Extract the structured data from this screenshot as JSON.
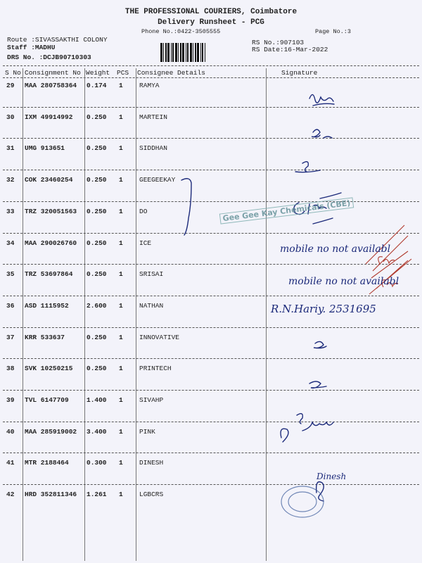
{
  "header": {
    "company": "THE PROFESSIONAL COURIERS, Coimbatore",
    "subtitle": "Delivery Runsheet - PCG",
    "phone": "Phone No.:0422-3505555",
    "page_no": "Page No.:3",
    "route": "Route :SIVASSAKTHI COLONY",
    "staff": "Staff :MADHU",
    "drs_no": "DRS No. :DCJB90710303",
    "rs_no": "RS No.:907103",
    "rs_date": "RS Date:16-Mar-2022"
  },
  "columns": [
    "S No",
    "Consignment No",
    "Weight",
    "PCS",
    "Consignee Details",
    "Signature"
  ],
  "rows": [
    {
      "sno": "29",
      "consignment": "MAA 280758364",
      "weight": "0.174",
      "pcs": "1",
      "consignee": "RAMYA"
    },
    {
      "sno": "30",
      "consignment": "IXM 49914992",
      "weight": "0.250",
      "pcs": "1",
      "consignee": "MARTEIN"
    },
    {
      "sno": "31",
      "consignment": "UMG 913651",
      "weight": "0.250",
      "pcs": "1",
      "consignee": "SIDDHAN"
    },
    {
      "sno": "32",
      "consignment": "COK 23460254",
      "weight": "0.250",
      "pcs": "1",
      "consignee": "GEEGEEKAY"
    },
    {
      "sno": "33",
      "consignment": "TRZ 320051563",
      "weight": "0.250",
      "pcs": "1",
      "consignee": "DO"
    },
    {
      "sno": "34",
      "consignment": "MAA 290026760",
      "weight": "0.250",
      "pcs": "1",
      "consignee": "ICE"
    },
    {
      "sno": "35",
      "consignment": "TRZ 53697864",
      "weight": "0.250",
      "pcs": "1",
      "consignee": "SRISAI"
    },
    {
      "sno": "36",
      "consignment": "ASD 1115952",
      "weight": "2.600",
      "pcs": "1",
      "consignee": "NATHAN"
    },
    {
      "sno": "37",
      "consignment": "KRR 533637",
      "weight": "0.250",
      "pcs": "1",
      "consignee": "INNOVATIVE"
    },
    {
      "sno": "38",
      "consignment": "SVK 10250215",
      "weight": "0.250",
      "pcs": "1",
      "consignee": "PRINTECH"
    },
    {
      "sno": "39",
      "consignment": "TVL 6147709",
      "weight": "1.400",
      "pcs": "1",
      "consignee": "SIVAHP"
    },
    {
      "sno": "40",
      "consignment": "MAA 285919002",
      "weight": "3.400",
      "pcs": "1",
      "consignee": "PINK"
    },
    {
      "sno": "41",
      "consignment": "MTR 2188464",
      "weight": "0.300",
      "pcs": "1",
      "consignee": "DINESH"
    },
    {
      "sno": "42",
      "consignment": "HRD 352811346",
      "weight": "1.261",
      "pcs": "1",
      "consignee": "LGBCRS"
    }
  ],
  "handwritten": {
    "note_34": "mobile no not availabl",
    "note_35": "mobile no not availabl",
    "note_36": "R.N.Hariy. 2531695",
    "sig_41": "Dinesh"
  },
  "stamp": "Gee Gee Kay Chemicals (CBE)",
  "colors": {
    "ink": "#1c2a7a",
    "red_ink": "#b03a2e",
    "stamp": "#5f8f95"
  }
}
